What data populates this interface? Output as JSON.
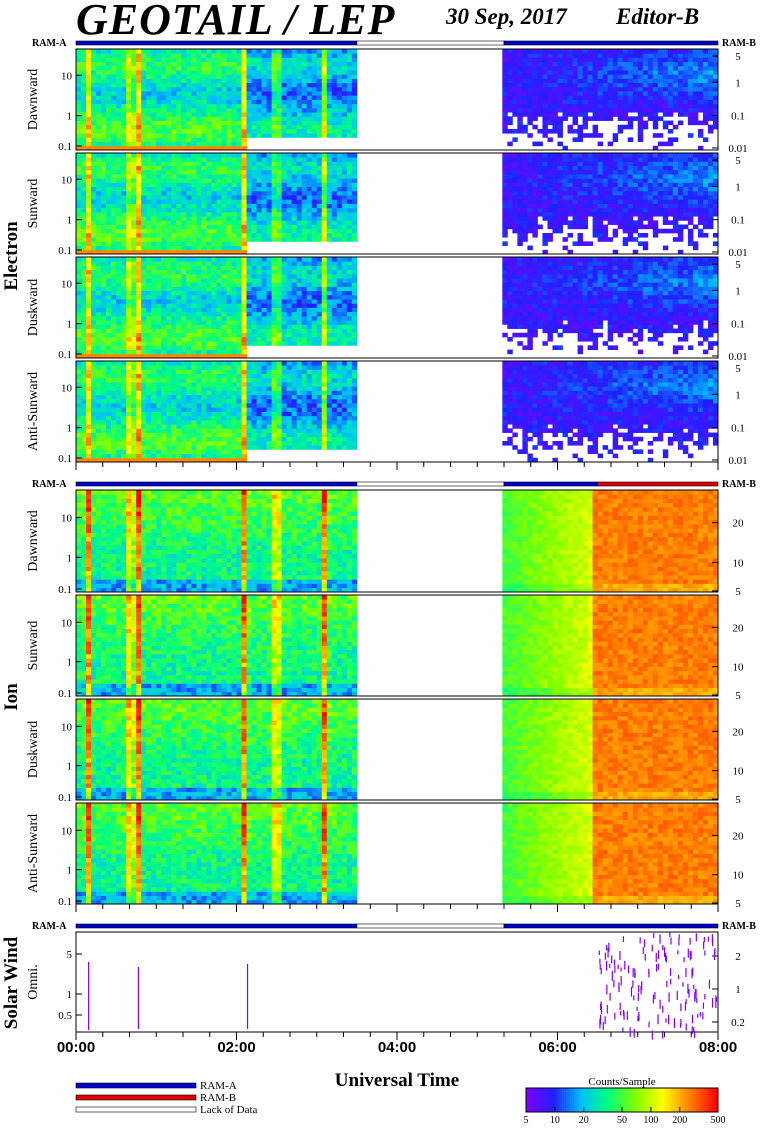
{
  "header": {
    "title": "GEOTAIL / LEP",
    "date": "30 Sep, 2017",
    "editor": "Editor-B"
  },
  "colors": {
    "ram_a": "#0000cc",
    "ram_b": "#dd0000",
    "lack_of_data": "#ffffff",
    "colorbar": [
      "#8000ff",
      "#2020ff",
      "#00c0ff",
      "#00ff80",
      "#80ff00",
      "#ffff00",
      "#ff8000",
      "#ff0000"
    ]
  },
  "chart_data": {
    "type": "heatmap",
    "xlabel": "Universal Time",
    "x_range": [
      "00:00",
      "08:00"
    ],
    "x_ticks": [
      "00:00",
      "02:00",
      "04:00",
      "06:00",
      "08:00"
    ],
    "data_gap": {
      "start": "03:30",
      "end": "05:20"
    },
    "sections": [
      {
        "name": "Electron",
        "ram_left": "RAM-A",
        "ram_right": "RAM-B",
        "ram_bar": [
          {
            "from": "00:00",
            "to": "03:30",
            "mode": "RAM-A"
          },
          {
            "from": "03:30",
            "to": "05:20",
            "mode": "Lack of Data"
          },
          {
            "from": "05:20",
            "to": "08:00",
            "mode": "RAM-A"
          }
        ],
        "panels": [
          {
            "label": "Dawnward",
            "left_ticks": [
              "10",
              "1",
              "0.1"
            ],
            "right_ticks": [
              "5",
              "1",
              "0.1",
              "0.01"
            ]
          },
          {
            "label": "Sunward",
            "left_ticks": [
              "10",
              "1",
              "0.1"
            ],
            "right_ticks": [
              "5",
              "1",
              "0.1",
              "0.01"
            ]
          },
          {
            "label": "Duskward",
            "left_ticks": [
              "10",
              "1",
              "0.1"
            ],
            "right_ticks": [
              "5",
              "1",
              "0.1",
              "0.01"
            ]
          },
          {
            "label": "Anti-Sunward",
            "left_ticks": [
              "10",
              "1",
              "0.1"
            ],
            "right_ticks": [
              "5",
              "1",
              "0.1",
              "0.01"
            ]
          }
        ]
      },
      {
        "name": "Ion",
        "ram_left": "RAM-A",
        "ram_right": "RAM-B",
        "ram_bar": [
          {
            "from": "00:00",
            "to": "03:30",
            "mode": "RAM-A"
          },
          {
            "from": "03:30",
            "to": "05:20",
            "mode": "Lack of Data"
          },
          {
            "from": "05:20",
            "to": "06:30",
            "mode": "RAM-A"
          },
          {
            "from": "06:30",
            "to": "08:00",
            "mode": "RAM-B"
          }
        ],
        "panels": [
          {
            "label": "Dawnward",
            "left_ticks": [
              "10",
              "1",
              "0.1"
            ],
            "right_ticks": [
              "20",
              "10",
              "5"
            ]
          },
          {
            "label": "Sunward",
            "left_ticks": [
              "10",
              "1",
              "0.1"
            ],
            "right_ticks": [
              "20",
              "10",
              "5"
            ]
          },
          {
            "label": "Duskward",
            "left_ticks": [
              "10",
              "1",
              "0.1"
            ],
            "right_ticks": [
              "20",
              "10",
              "5"
            ]
          },
          {
            "label": "Anti-Sunward",
            "left_ticks": [
              "10",
              "1",
              "0.1"
            ],
            "right_ticks": [
              "20",
              "10",
              "5"
            ]
          }
        ]
      },
      {
        "name": "Solar Wind",
        "ram_left": "RAM-A",
        "ram_right": "RAM-B",
        "ram_bar": [
          {
            "from": "00:00",
            "to": "03:30",
            "mode": "RAM-A"
          },
          {
            "from": "03:30",
            "to": "05:20",
            "mode": "Lack of Data"
          },
          {
            "from": "05:20",
            "to": "08:00",
            "mode": "RAM-A"
          }
        ],
        "panels": [
          {
            "label": "Omni.",
            "left_ticks": [
              "5",
              "1",
              "0.5"
            ],
            "right_ticks": [
              "2",
              "1",
              "0.2"
            ]
          }
        ]
      }
    ],
    "legend": [
      {
        "label": "RAM-A",
        "color": "#0000cc"
      },
      {
        "label": "RAM-B",
        "color": "#dd0000"
      },
      {
        "label": "Lack of Data",
        "color": "#ffffff"
      }
    ],
    "colorbar": {
      "title": "Counts/Sample",
      "ticks": [
        "5",
        "10",
        "20",
        "50",
        "100",
        "200",
        "500"
      ]
    }
  }
}
